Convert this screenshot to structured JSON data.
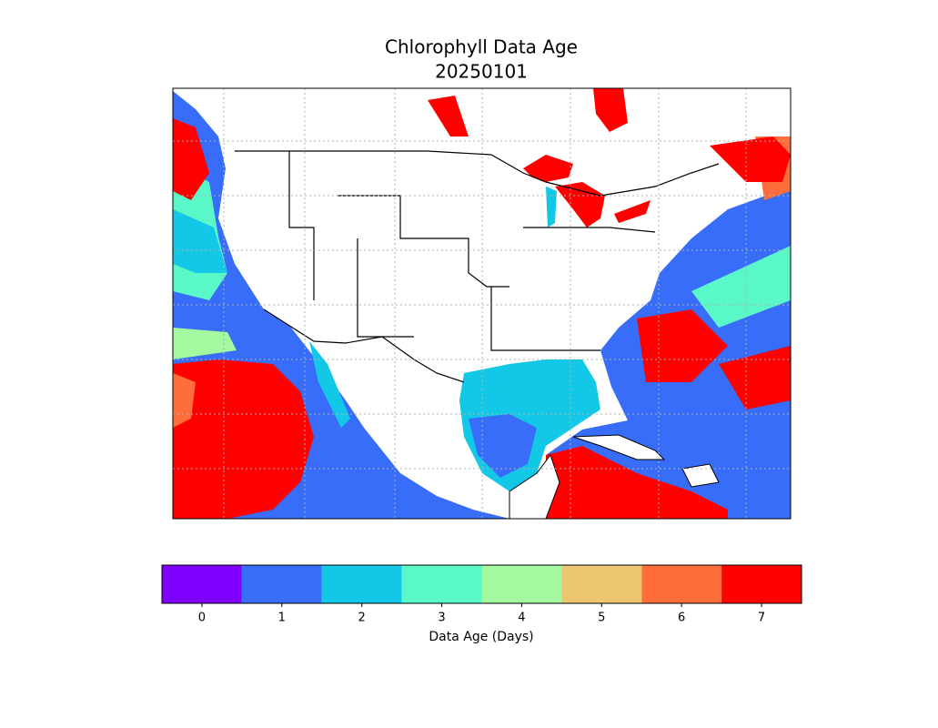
{
  "title": "Chlorophyll Data Age",
  "subtitle": "20250101",
  "colorbar": {
    "ticks": [
      0,
      1,
      2,
      3,
      4,
      5,
      6,
      7
    ],
    "colors": [
      "#7f00ff",
      "#386df9",
      "#12c8e6",
      "#5af8c8",
      "#a4f89f",
      "#edc672",
      "#ff6e3a",
      "#ff0000"
    ],
    "label": "Data Age (Days)"
  }
}
